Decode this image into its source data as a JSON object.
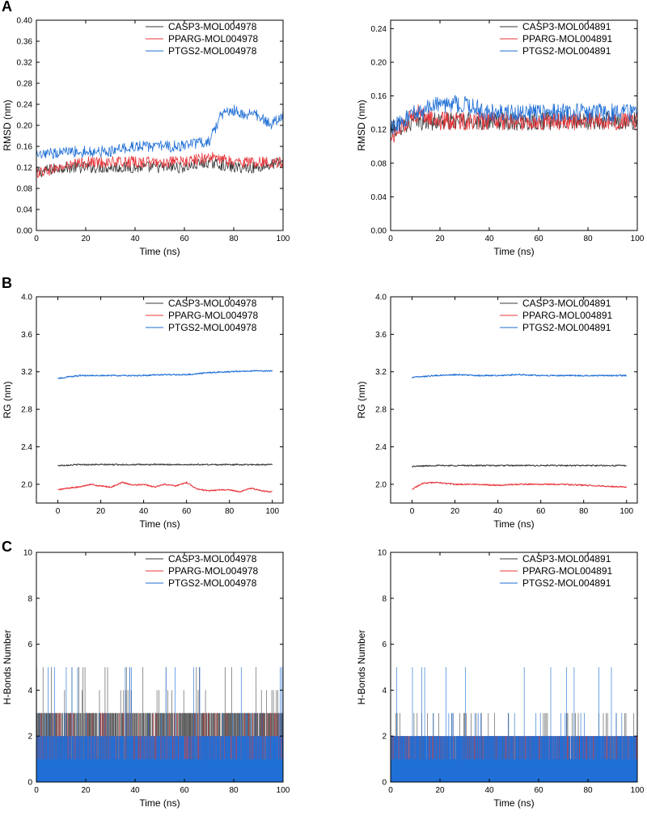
{
  "panel_labels": [
    "A",
    "B",
    "C"
  ],
  "colors": {
    "CASP3": "#3a3a3a",
    "PPARG": "#e8353a",
    "PTGS2": "#1f6fd6",
    "axis": "#000000"
  },
  "chart_data": [
    {
      "id": "A-left",
      "panel": "A",
      "type": "line",
      "title": "",
      "xlabel": "Time (ns)",
      "ylabel": "RMSD (nm)",
      "xlim": [
        0,
        100
      ],
      "ylim": [
        0,
        0.4
      ],
      "xticks": [
        0,
        20,
        40,
        60,
        80,
        100
      ],
      "yticks": [
        0.0,
        0.04,
        0.08,
        0.12,
        0.16,
        0.2,
        0.24,
        0.28,
        0.32,
        0.36,
        0.4
      ],
      "ytick_labels": [
        "0.00",
        "0.04",
        "0.08",
        "0.12",
        "0.16",
        "0.20",
        "0.24",
        "0.28",
        "0.32",
        "0.36",
        "0.40"
      ],
      "legend": [
        "CASP3-MOL004978",
        "PPARG-MOL004978",
        "PTGS2-MOL004978"
      ],
      "series": [
        {
          "name": "CASP3-MOL004978",
          "color_key": "CASP3",
          "x": [
            0,
            10,
            20,
            30,
            40,
            50,
            60,
            70,
            80,
            90,
            100
          ],
          "values": [
            0.11,
            0.12,
            0.12,
            0.12,
            0.12,
            0.12,
            0.12,
            0.13,
            0.12,
            0.12,
            0.13
          ]
        },
        {
          "name": "PPARG-MOL004978",
          "color_key": "PPARG",
          "x": [
            0,
            10,
            20,
            30,
            40,
            50,
            60,
            70,
            80,
            90,
            100
          ],
          "values": [
            0.11,
            0.12,
            0.13,
            0.13,
            0.13,
            0.13,
            0.13,
            0.14,
            0.13,
            0.13,
            0.13
          ]
        },
        {
          "name": "PTGS2-MOL004978",
          "color_key": "PTGS2",
          "x": [
            0,
            10,
            20,
            30,
            40,
            50,
            60,
            70,
            75,
            80,
            85,
            90,
            95,
            100
          ],
          "values": [
            0.14,
            0.15,
            0.15,
            0.15,
            0.16,
            0.16,
            0.16,
            0.17,
            0.22,
            0.23,
            0.22,
            0.22,
            0.2,
            0.22
          ]
        }
      ]
    },
    {
      "id": "A-right",
      "panel": "A",
      "type": "line",
      "title": "",
      "xlabel": "Time (ns)",
      "ylabel": "RMSD (nm)",
      "xlim": [
        0,
        100
      ],
      "ylim": [
        0,
        0.25
      ],
      "xticks": [
        0,
        20,
        40,
        60,
        80,
        100
      ],
      "yticks": [
        0.0,
        0.04,
        0.08,
        0.12,
        0.16,
        0.2,
        0.24
      ],
      "ytick_labels": [
        "0.00",
        "0.04",
        "0.08",
        "0.12",
        "0.16",
        "0.20",
        "0.24"
      ],
      "legend": [
        "CASP3-MOL004891",
        "PPARG-MOL004891",
        "PTGS2-MOL004891"
      ],
      "series": [
        {
          "name": "CASP3-MOL004891",
          "color_key": "CASP3",
          "x": [
            0,
            10,
            20,
            30,
            40,
            50,
            60,
            70,
            80,
            90,
            100
          ],
          "values": [
            0.12,
            0.13,
            0.13,
            0.13,
            0.13,
            0.13,
            0.13,
            0.13,
            0.13,
            0.13,
            0.13
          ]
        },
        {
          "name": "PPARG-MOL004891",
          "color_key": "PPARG",
          "x": [
            0,
            10,
            20,
            30,
            40,
            50,
            60,
            70,
            80,
            90,
            100
          ],
          "values": [
            0.11,
            0.14,
            0.13,
            0.13,
            0.13,
            0.13,
            0.13,
            0.13,
            0.13,
            0.13,
            0.13
          ]
        },
        {
          "name": "PTGS2-MOL004891",
          "color_key": "PTGS2",
          "x": [
            0,
            10,
            20,
            30,
            40,
            50,
            60,
            70,
            80,
            90,
            100
          ],
          "values": [
            0.12,
            0.14,
            0.15,
            0.15,
            0.14,
            0.14,
            0.14,
            0.14,
            0.14,
            0.14,
            0.14
          ]
        }
      ]
    },
    {
      "id": "B-left",
      "panel": "B",
      "type": "line",
      "title": "",
      "xlabel": "Time (ns)",
      "ylabel": "RG (nm)",
      "xlim": [
        -10,
        105
      ],
      "ylim": [
        1.8,
        4.0
      ],
      "xticks": [
        0,
        20,
        40,
        60,
        80,
        100
      ],
      "yticks": [
        2.0,
        2.4,
        2.8,
        3.2,
        3.6,
        4.0
      ],
      "ytick_labels": [
        "2.0",
        "2.4",
        "2.8",
        "3.2",
        "3.6",
        "4.0"
      ],
      "legend": [
        "CASP3-MOL004978",
        "PPARG-MOL004978",
        "PTGS2-MOL004978"
      ],
      "series": [
        {
          "name": "CASP3-MOL004978",
          "color_key": "CASP3",
          "x": [
            0,
            10,
            20,
            30,
            40,
            50,
            60,
            70,
            80,
            90,
            100
          ],
          "values": [
            2.2,
            2.21,
            2.21,
            2.21,
            2.21,
            2.21,
            2.21,
            2.21,
            2.21,
            2.21,
            2.21
          ]
        },
        {
          "name": "PPARG-MOL004978",
          "color_key": "PPARG",
          "x": [
            0,
            5,
            10,
            15,
            20,
            25,
            30,
            35,
            40,
            45,
            50,
            55,
            60,
            65,
            70,
            75,
            80,
            85,
            90,
            95,
            100
          ],
          "values": [
            1.94,
            1.96,
            1.97,
            2.0,
            1.98,
            1.97,
            2.02,
            1.99,
            2.0,
            1.97,
            2.0,
            1.98,
            2.02,
            1.95,
            1.93,
            1.94,
            1.94,
            1.92,
            1.96,
            1.93,
            1.92
          ]
        },
        {
          "name": "PTGS2-MOL004978",
          "color_key": "PTGS2",
          "x": [
            0,
            10,
            20,
            30,
            40,
            50,
            60,
            70,
            80,
            90,
            100
          ],
          "values": [
            3.13,
            3.16,
            3.16,
            3.16,
            3.16,
            3.17,
            3.17,
            3.19,
            3.2,
            3.21,
            3.21
          ]
        }
      ]
    },
    {
      "id": "B-right",
      "panel": "B",
      "type": "line",
      "title": "",
      "xlabel": "Time (ns)",
      "ylabel": "RG (nm)",
      "xlim": [
        -10,
        105
      ],
      "ylim": [
        1.8,
        4.0
      ],
      "xticks": [
        0,
        20,
        40,
        60,
        80,
        100
      ],
      "yticks": [
        2.0,
        2.4,
        2.8,
        3.2,
        3.6,
        4.0
      ],
      "ytick_labels": [
        "2.0",
        "2.4",
        "2.8",
        "3.2",
        "3.6",
        "4.0"
      ],
      "legend": [
        "CASP3-MOL004891",
        "PPARG-MOL004891",
        "PTGS2-MOL004891"
      ],
      "series": [
        {
          "name": "CASP3-MOL004891",
          "color_key": "CASP3",
          "x": [
            0,
            10,
            20,
            30,
            40,
            50,
            60,
            70,
            80,
            90,
            100
          ],
          "values": [
            2.19,
            2.2,
            2.2,
            2.2,
            2.2,
            2.2,
            2.2,
            2.2,
            2.2,
            2.2,
            2.2
          ]
        },
        {
          "name": "PPARG-MOL004891",
          "color_key": "PPARG",
          "x": [
            0,
            5,
            10,
            20,
            30,
            40,
            50,
            60,
            70,
            80,
            90,
            100
          ],
          "values": [
            1.95,
            2.01,
            2.02,
            2.0,
            2.0,
            1.99,
            2.0,
            2.0,
            2.0,
            1.99,
            1.98,
            1.97
          ]
        },
        {
          "name": "PTGS2-MOL004891",
          "color_key": "PTGS2",
          "x": [
            0,
            10,
            20,
            30,
            40,
            50,
            60,
            70,
            80,
            90,
            100
          ],
          "values": [
            3.14,
            3.16,
            3.17,
            3.16,
            3.16,
            3.17,
            3.16,
            3.16,
            3.16,
            3.16,
            3.16
          ]
        }
      ]
    },
    {
      "id": "C-left",
      "panel": "C",
      "type": "bar",
      "title": "",
      "xlabel": "Time (ns)",
      "ylabel": "H-Bonds Number",
      "xlim": [
        0,
        100
      ],
      "ylim": [
        0,
        10
      ],
      "xticks": [
        0,
        20,
        40,
        60,
        80,
        100
      ],
      "yticks": [
        0,
        2,
        4,
        6,
        8,
        10
      ],
      "ytick_labels": [
        "0",
        "2",
        "4",
        "6",
        "8",
        "10"
      ],
      "legend": [
        "CASP3-MOL004978",
        "PPARG-MOL004978",
        "PTGS2-MOL004978"
      ],
      "series": [
        {
          "name": "CASP3-MOL004978",
          "color_key": "CASP3",
          "typical": 3,
          "max": 5
        },
        {
          "name": "PPARG-MOL004978",
          "color_key": "PPARG",
          "typical": 2,
          "max": 3
        },
        {
          "name": "PTGS2-MOL004978",
          "color_key": "PTGS2",
          "typical": 2,
          "max": 5
        }
      ]
    },
    {
      "id": "C-right",
      "panel": "C",
      "type": "bar",
      "title": "",
      "xlabel": "Time (ns)",
      "ylabel": "H-Bonds Number",
      "xlim": [
        0,
        100
      ],
      "ylim": [
        0,
        10
      ],
      "xticks": [
        0,
        20,
        40,
        60,
        80,
        100
      ],
      "yticks": [
        0,
        2,
        4,
        6,
        8,
        10
      ],
      "ytick_labels": [
        "0",
        "2",
        "4",
        "6",
        "8",
        "10"
      ],
      "legend": [
        "CASP3-MOL004891",
        "PPARG-MOL004891",
        "PTGS2-MOL004891"
      ],
      "series": [
        {
          "name": "CASP3-MOL004891",
          "color_key": "CASP3",
          "typical": 2,
          "max": 3
        },
        {
          "name": "PPARG-MOL004891",
          "color_key": "PPARG",
          "typical": 2,
          "max": 2
        },
        {
          "name": "PTGS2-MOL004891",
          "color_key": "PTGS2",
          "typical": 2,
          "max": 5
        }
      ]
    }
  ]
}
